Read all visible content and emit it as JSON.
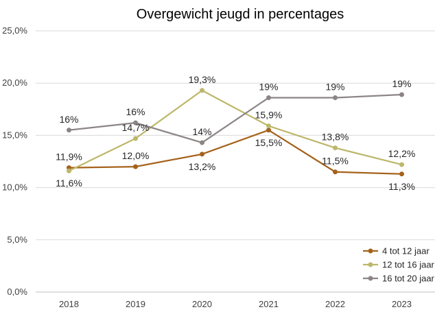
{
  "chart_data": {
    "type": "line",
    "title": "Overgewicht jeugd in percentages",
    "xlabel": "",
    "ylabel": "",
    "categories": [
      "2018",
      "2019",
      "2020",
      "2021",
      "2022",
      "2023"
    ],
    "ylim": [
      0,
      25
    ],
    "yticks": [
      0,
      5,
      10,
      15,
      20,
      25
    ],
    "ytick_labels": [
      "0,0%",
      "5,0%",
      "10,0%",
      "15,0%",
      "20,0%",
      "25,0%"
    ],
    "grid": true,
    "legend_position": "bottom-right",
    "series": [
      {
        "name": "4 tot 12 jaar",
        "color": "#A5621B",
        "values": [
          11.9,
          12.0,
          13.2,
          15.5,
          11.5,
          11.3
        ],
        "labels": [
          "11,9%",
          "12,0%",
          "13,2%",
          "15,5%",
          "11,5%",
          "11,3%"
        ],
        "label_side": [
          "above",
          "above",
          "below",
          "below",
          "above",
          "below"
        ]
      },
      {
        "name": "12 tot 16 jaar",
        "color": "#BDB76B",
        "values": [
          11.6,
          14.7,
          19.3,
          15.9,
          13.8,
          12.2
        ],
        "labels": [
          "11,6%",
          "14,7%",
          "19,3%",
          "15,9%",
          "13,8%",
          "12,2%"
        ],
        "label_side": [
          "below",
          "above",
          "above",
          "above",
          "above",
          "above"
        ]
      },
      {
        "name": "16 tot 20 jaar",
        "color": "#8C8585",
        "values": [
          15.5,
          16.2,
          14.3,
          18.6,
          18.6,
          18.9
        ],
        "labels": [
          "16%",
          "16%",
          "14%",
          "19%",
          "19%",
          "19%"
        ],
        "label_side": [
          "above",
          "above",
          "above",
          "above",
          "above",
          "above"
        ]
      }
    ]
  }
}
